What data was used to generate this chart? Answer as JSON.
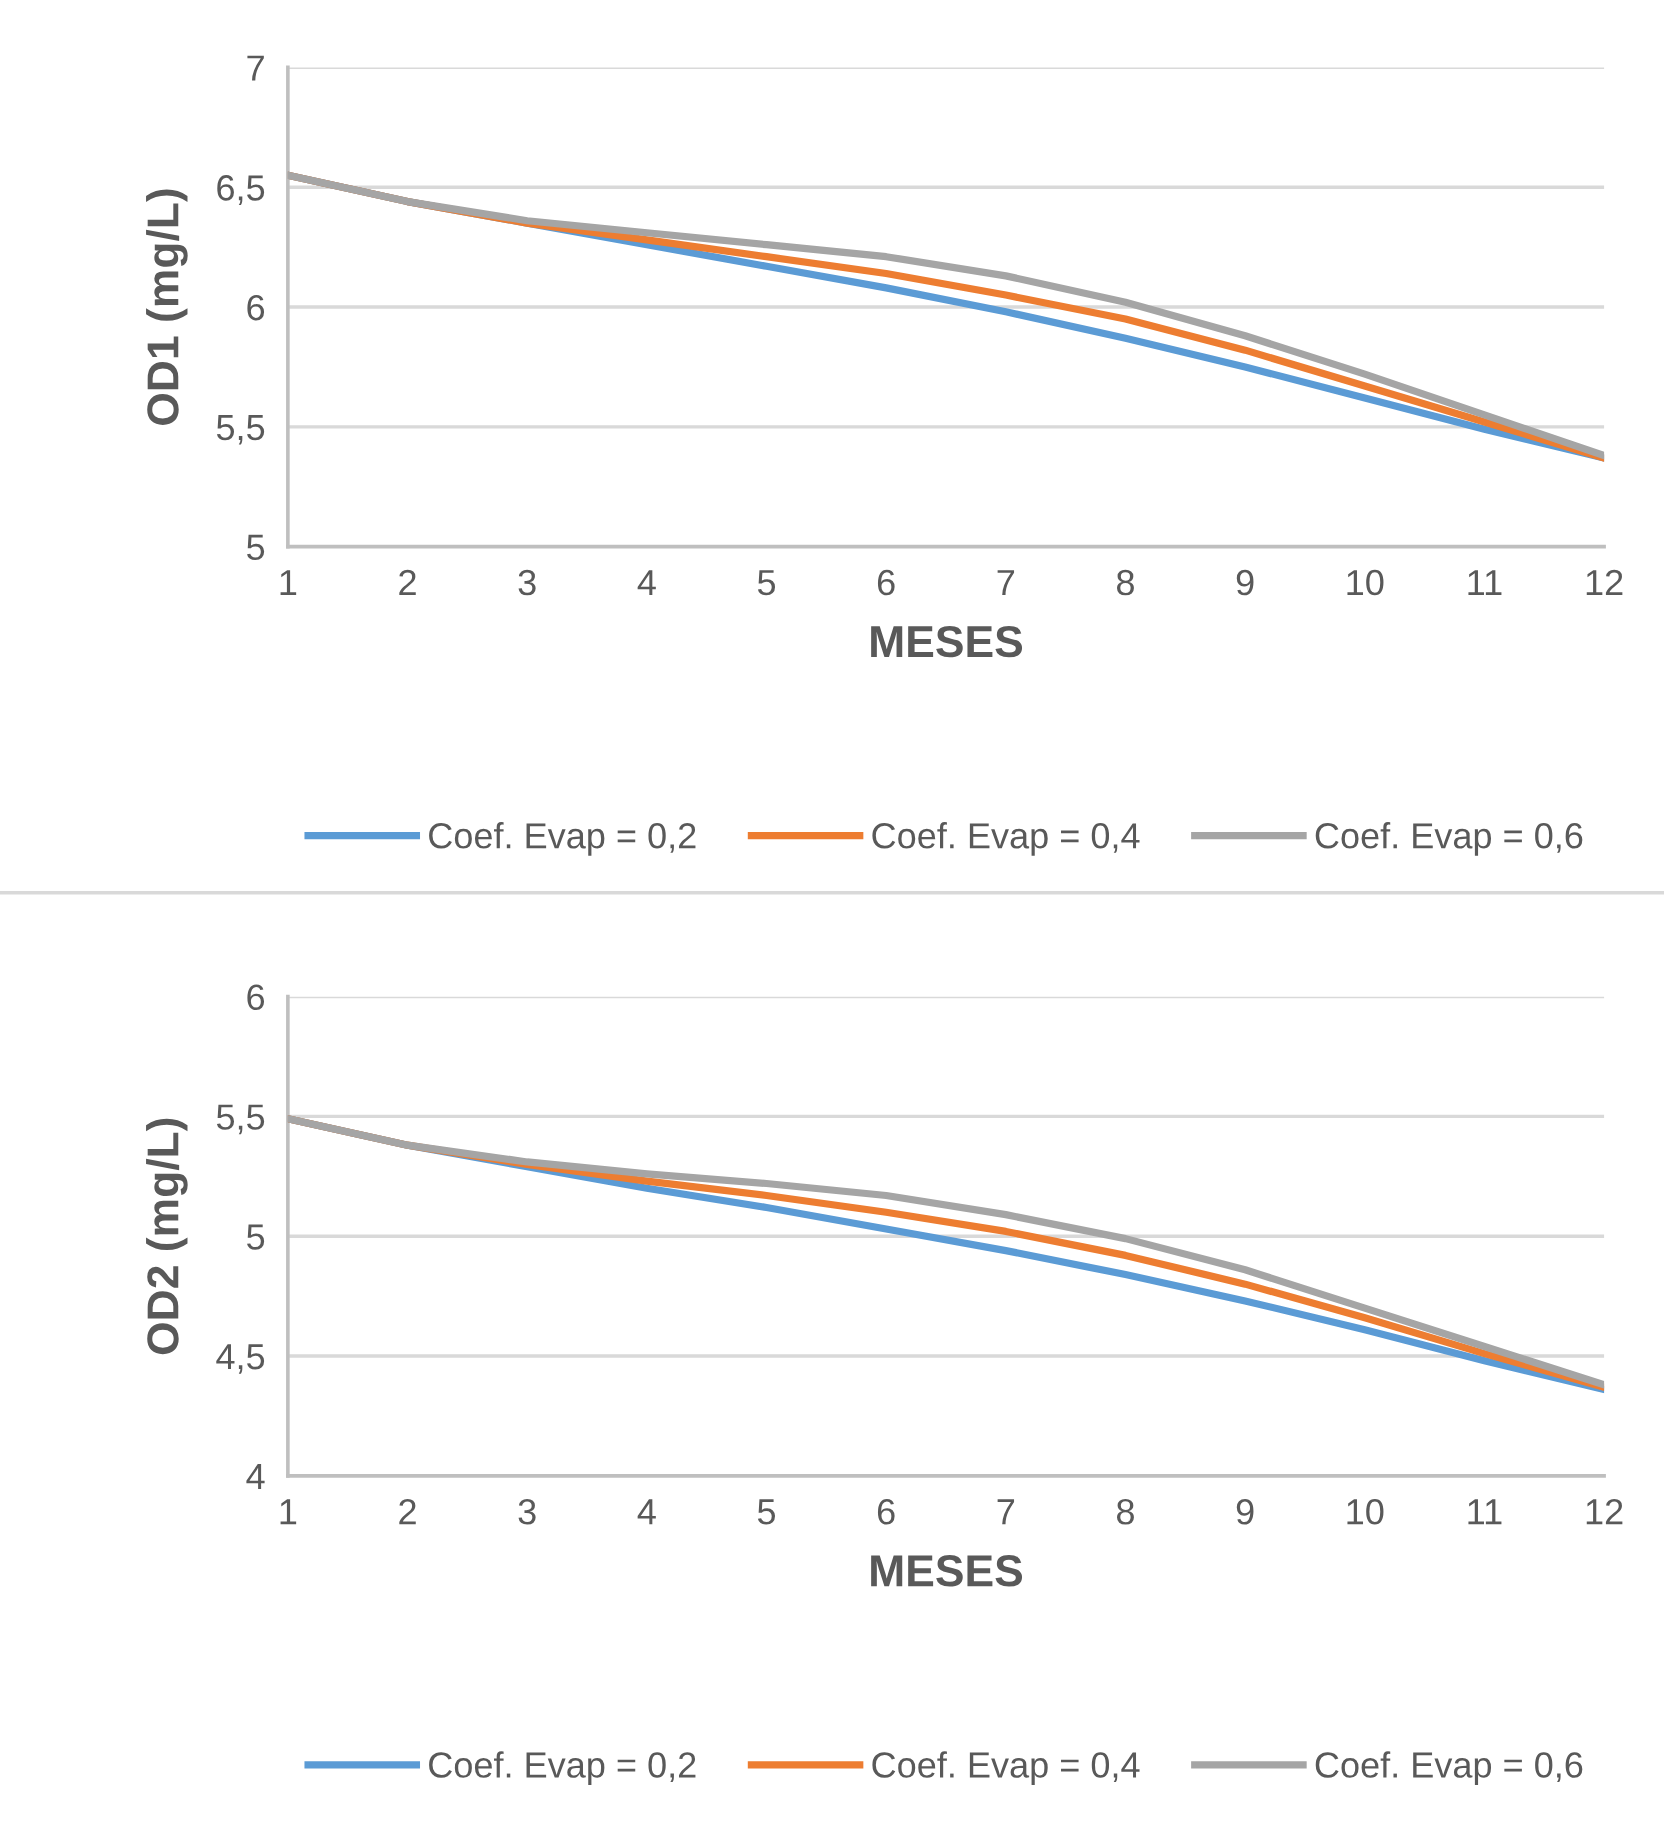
{
  "chart_data": [
    {
      "type": "line",
      "x": [
        1,
        2,
        3,
        4,
        5,
        6,
        7,
        8,
        9,
        10,
        11,
        12
      ],
      "xlabel": "MESES",
      "ylabel": "OD1 (mg/L)",
      "xlim": [
        1,
        12
      ],
      "xticks": [
        1,
        2,
        3,
        4,
        5,
        6,
        7,
        8,
        9,
        10,
        11,
        12
      ],
      "ylim": [
        5,
        7
      ],
      "yticks": [
        5,
        {
          "value": 5.5,
          "label": "5,5"
        },
        6,
        {
          "value": 6.5,
          "label": "6,5"
        },
        7
      ],
      "grid": "y",
      "legend": "bottom",
      "marker": "none",
      "line_style": "solid",
      "series": [
        {
          "name": "Coef. Evap = 0,2",
          "color": "#5b9bd5",
          "values": [
            6.55,
            6.44,
            6.35,
            6.26,
            6.17,
            6.08,
            5.98,
            5.87,
            5.75,
            5.62,
            5.49,
            5.37
          ]
        },
        {
          "name": "Coef. Evap = 0,4",
          "color": "#ed7d31",
          "values": [
            6.55,
            6.44,
            6.35,
            6.28,
            6.21,
            6.14,
            6.05,
            5.95,
            5.82,
            5.67,
            5.52,
            5.37
          ]
        },
        {
          "name": "Coef. Evap = 0,6",
          "color": "#a5a5a5",
          "values": [
            6.55,
            6.44,
            6.36,
            6.31,
            6.26,
            6.21,
            6.13,
            6.02,
            5.88,
            5.72,
            5.55,
            5.38
          ]
        }
      ]
    },
    {
      "type": "line",
      "x": [
        1,
        2,
        3,
        4,
        5,
        6,
        7,
        8,
        9,
        10,
        11,
        12
      ],
      "xlabel": "MESES",
      "ylabel": "OD2 (mg/L)",
      "xlim": [
        1,
        12
      ],
      "xticks": [
        1,
        2,
        3,
        4,
        5,
        6,
        7,
        8,
        9,
        10,
        11,
        12
      ],
      "ylim": [
        4,
        6
      ],
      "yticks": [
        4,
        {
          "value": 4.5,
          "label": "4,5"
        },
        5,
        {
          "value": 5.5,
          "label": "5,5"
        },
        6
      ],
      "grid": "y",
      "legend": "bottom",
      "marker": "none",
      "line_style": "solid",
      "series": [
        {
          "name": "Coef. Evap = 0,2",
          "color": "#5b9bd5",
          "values": [
            5.49,
            5.38,
            5.29,
            5.2,
            5.12,
            5.03,
            4.94,
            4.84,
            4.73,
            4.61,
            4.48,
            4.36
          ]
        },
        {
          "name": "Coef. Evap = 0,4",
          "color": "#ed7d31",
          "values": [
            5.49,
            5.38,
            5.3,
            5.23,
            5.17,
            5.1,
            5.02,
            4.92,
            4.8,
            4.66,
            4.51,
            4.37
          ]
        },
        {
          "name": "Coef. Evap = 0,6",
          "color": "#a5a5a5",
          "values": [
            5.49,
            5.38,
            5.31,
            5.26,
            5.22,
            5.17,
            5.09,
            4.99,
            4.86,
            4.7,
            4.54,
            4.38
          ]
        }
      ]
    }
  ]
}
